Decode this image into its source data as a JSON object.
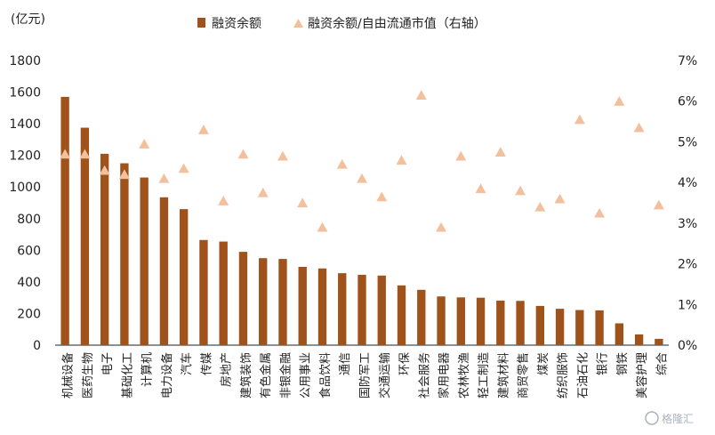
{
  "chart_data": {
    "type": "bar",
    "y_unit_label": "(亿元)",
    "categories": [
      "机械设备",
      "医药生物",
      "电子",
      "基础化工",
      "计算机",
      "电力设备",
      "汽车",
      "传媒",
      "房地产",
      "建筑装饰",
      "有色金属",
      "非银金融",
      "公用事业",
      "食品饮料",
      "通信",
      "国防军工",
      "交通运输",
      "环保",
      "社会服务",
      "家用电器",
      "农林牧渔",
      "轻工制造",
      "建筑材料",
      "商贸零售",
      "煤炭",
      "纺织服饰",
      "石油石化",
      "银行",
      "钢铁",
      "美容护理",
      "综合"
    ],
    "series": [
      {
        "name": "融资余额",
        "kind": "bar",
        "axis": "left",
        "color": "#a0521b",
        "values": [
          1570,
          1375,
          1210,
          1150,
          1060,
          935,
          860,
          665,
          655,
          590,
          550,
          545,
          495,
          485,
          455,
          445,
          440,
          378,
          350,
          308,
          302,
          300,
          282,
          280,
          248,
          230,
          222,
          220,
          138,
          68,
          40
        ]
      },
      {
        "name": "融资余额/自由流通市值（右轴）",
        "kind": "marker",
        "axis": "right",
        "color": "#f3c09e",
        "values": [
          4.7,
          4.7,
          4.3,
          4.2,
          4.95,
          4.1,
          4.35,
          5.3,
          3.55,
          4.7,
          3.75,
          4.65,
          3.5,
          2.9,
          4.45,
          4.1,
          3.65,
          4.55,
          6.15,
          2.9,
          4.65,
          3.85,
          4.75,
          3.8,
          3.4,
          3.6,
          5.55,
          3.25,
          6.0,
          5.35,
          3.45
        ]
      }
    ],
    "y_left": {
      "min": 0,
      "max": 1800,
      "ticks": [
        "0",
        "200",
        "400",
        "600",
        "800",
        "1000",
        "1200",
        "1400",
        "1600",
        "1800"
      ]
    },
    "y_right": {
      "min": 0,
      "max": 7,
      "ticks": [
        "0%",
        "1%",
        "2%",
        "3%",
        "4%",
        "5%",
        "6%",
        "7%"
      ]
    },
    "grid": false,
    "legend_position": "top"
  },
  "watermark": "格隆汇"
}
